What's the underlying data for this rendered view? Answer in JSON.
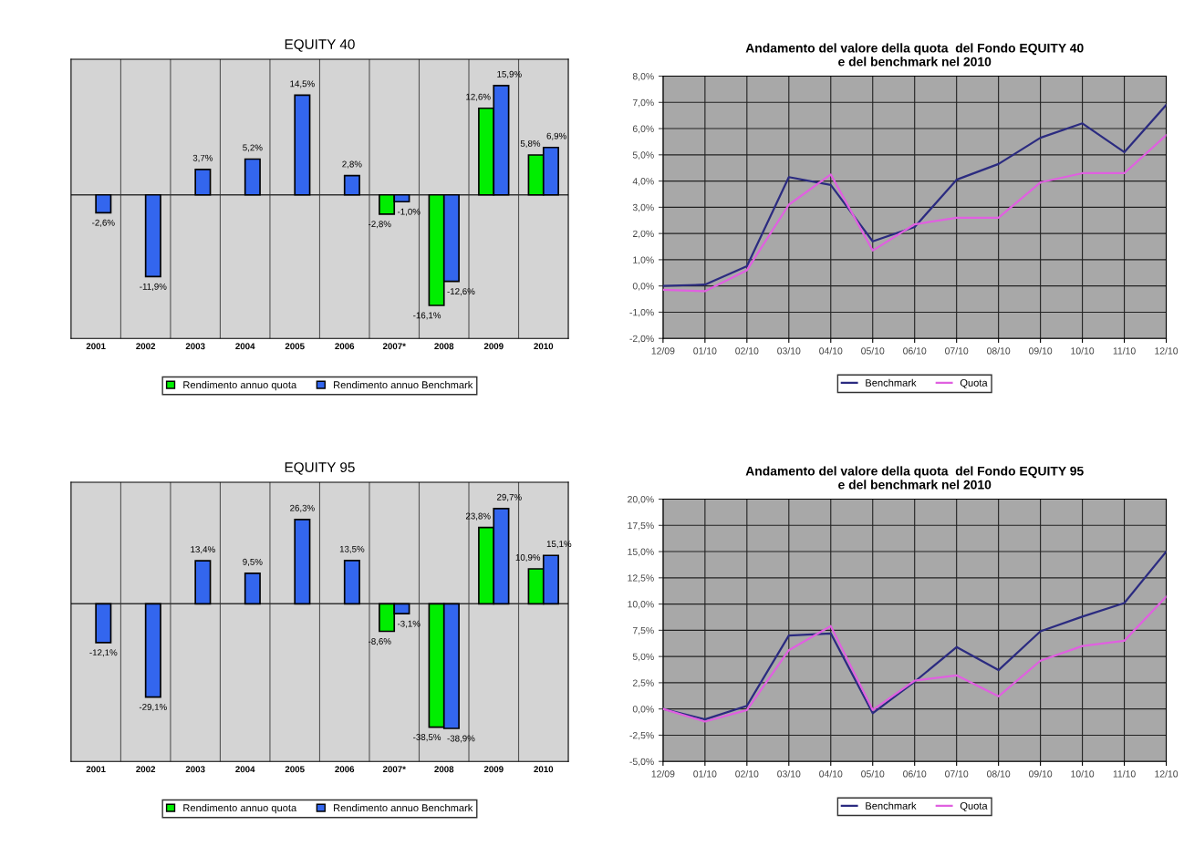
{
  "chart_data": [
    {
      "type": "bar",
      "title": "EQUITY 40",
      "categories": [
        "2001",
        "2002",
        "2003",
        "2004",
        "2005",
        "2006",
        "2007*",
        "2008",
        "2009",
        "2010"
      ],
      "grid": "x",
      "legend": "bottom",
      "series": [
        {
          "name": "Rendimento annuo quota",
          "color": "#00ee00",
          "values": [
            null,
            null,
            null,
            null,
            null,
            null,
            -2.8,
            -16.1,
            12.6,
            5.8
          ],
          "value_labels": [
            null,
            null,
            null,
            null,
            null,
            null,
            "-2,8%",
            "-16,1%",
            "12,6%",
            "5,8%"
          ]
        },
        {
          "name": "Rendimento annuo Benchmark",
          "color": "#3366ee",
          "values": [
            -2.6,
            -11.9,
            3.7,
            5.2,
            14.5,
            2.8,
            -1.0,
            -12.6,
            15.9,
            6.9
          ],
          "value_labels": [
            "-2,6%",
            "-11,9%",
            "3,7%",
            "5,2%",
            "14,5%",
            "2,8%",
            "-1,0%",
            "-12,6%",
            "15,9%",
            "6,9%"
          ]
        }
      ]
    },
    {
      "type": "line",
      "title": "Andamento del valore della quota  del Fondo EQUITY 40\ne del benchmark nel 2010",
      "categories": [
        "12/09",
        "01/10",
        "02/10",
        "03/10",
        "04/10",
        "05/10",
        "06/10",
        "07/10",
        "08/10",
        "09/10",
        "10/10",
        "11/10",
        "12/10"
      ],
      "grid": true,
      "legend": "bottom",
      "marker": "none",
      "line_style": "solid",
      "ylim": [
        -2,
        8
      ],
      "yticks": [
        {
          "value": -2,
          "label": "-2,0%"
        },
        {
          "value": -1,
          "label": "-1,0%"
        },
        {
          "value": 0,
          "label": "0,0%"
        },
        {
          "value": 1,
          "label": "1,0%"
        },
        {
          "value": 2,
          "label": "2,0%"
        },
        {
          "value": 3,
          "label": "3,0%"
        },
        {
          "value": 4,
          "label": "4,0%"
        },
        {
          "value": 5,
          "label": "5,0%"
        },
        {
          "value": 6,
          "label": "6,0%"
        },
        {
          "value": 7,
          "label": "7,0%"
        },
        {
          "value": 8,
          "label": "8,0%"
        }
      ],
      "series": [
        {
          "name": "Benchmark",
          "color": "#2b2b80",
          "values": [
            0.0,
            0.05,
            0.75,
            4.15,
            3.85,
            1.7,
            2.25,
            4.05,
            4.65,
            5.65,
            6.2,
            5.1,
            6.9
          ]
        },
        {
          "name": "Quota",
          "color": "#e060e0",
          "values": [
            -0.15,
            -0.2,
            0.6,
            3.1,
            4.25,
            1.35,
            2.35,
            2.6,
            2.6,
            3.95,
            4.3,
            4.3,
            5.75
          ]
        }
      ]
    },
    {
      "type": "bar",
      "title": "EQUITY 95",
      "categories": [
        "2001",
        "2002",
        "2003",
        "2004",
        "2005",
        "2006",
        "2007*",
        "2008",
        "2009",
        "2010"
      ],
      "grid": "x",
      "legend": "bottom",
      "series": [
        {
          "name": "Rendimento annuo quota",
          "color": "#00ee00",
          "values": [
            null,
            null,
            null,
            null,
            null,
            null,
            -8.6,
            -38.5,
            23.8,
            10.9
          ],
          "value_labels": [
            null,
            null,
            null,
            null,
            null,
            null,
            "-8,6%",
            "-38,5%",
            "23,8%",
            "10,9%"
          ]
        },
        {
          "name": "Rendimento annuo Benchmark",
          "color": "#3366ee",
          "values": [
            -12.1,
            -29.1,
            13.4,
            9.5,
            26.3,
            13.5,
            -3.1,
            -38.9,
            29.7,
            15.1
          ],
          "value_labels": [
            "-12,1%",
            "-29,1%",
            "13,4%",
            "9,5%",
            "26,3%",
            "13,5%",
            "-3,1%",
            "-38,9%",
            "29,7%",
            "15,1%"
          ]
        }
      ]
    },
    {
      "type": "line",
      "title": "Andamento del valore della quota  del Fondo EQUITY 95\ne del benchmark nel 2010",
      "categories": [
        "12/09",
        "01/10",
        "02/10",
        "03/10",
        "04/10",
        "05/10",
        "06/10",
        "07/10",
        "08/10",
        "09/10",
        "10/10",
        "11/10",
        "12/10"
      ],
      "grid": true,
      "legend": "bottom",
      "marker": "none",
      "line_style": "solid",
      "ylim": [
        -5,
        20
      ],
      "yticks": [
        {
          "value": -5,
          "label": "-5,0%"
        },
        {
          "value": -2.5,
          "label": "-2,5%"
        },
        {
          "value": 0,
          "label": "0,0%"
        },
        {
          "value": 2.5,
          "label": "2,5%"
        },
        {
          "value": 5,
          "label": "5,0%"
        },
        {
          "value": 7.5,
          "label": "7,5%"
        },
        {
          "value": 10,
          "label": "10,0%"
        },
        {
          "value": 12.5,
          "label": "12,5%"
        },
        {
          "value": 15,
          "label": "15,0%"
        },
        {
          "value": 17.5,
          "label": "17,5%"
        },
        {
          "value": 20,
          "label": "20,0%"
        }
      ],
      "series": [
        {
          "name": "Benchmark",
          "color": "#2b2b80",
          "values": [
            0.0,
            -1.0,
            0.3,
            7.0,
            7.2,
            -0.4,
            2.6,
            5.9,
            3.7,
            7.4,
            8.8,
            10.1,
            15.0
          ]
        },
        {
          "name": "Quota",
          "color": "#e060e0",
          "values": [
            0.0,
            -1.2,
            -0.1,
            5.6,
            7.9,
            -0.1,
            2.7,
            3.2,
            1.2,
            4.6,
            6.0,
            6.5,
            10.7
          ]
        }
      ]
    }
  ]
}
